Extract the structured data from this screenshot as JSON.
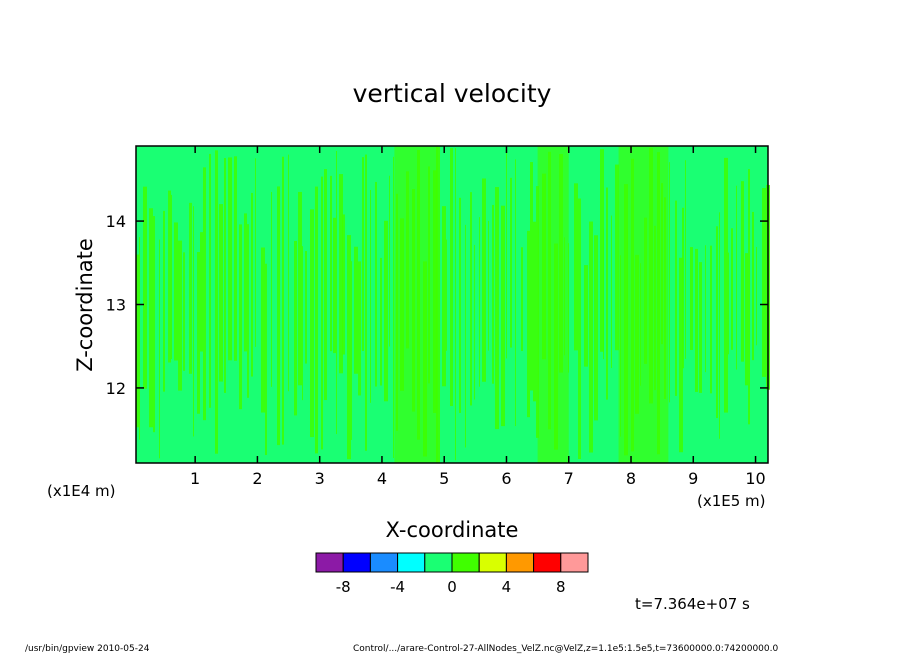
{
  "chart_data": {
    "type": "heatmap",
    "title": "vertical velocity",
    "xlabel": "X-coordinate",
    "ylabel": "Z-coordinate",
    "x_unit_left": "(x1E4 m)",
    "x_unit_right": "(x1E5 m)",
    "xlim": [
      0.05,
      10.2
    ],
    "ylim": [
      11.1,
      14.9
    ],
    "xticks": [
      1,
      2,
      3,
      4,
      5,
      6,
      7,
      8,
      9,
      10
    ],
    "yticks": [
      12,
      13,
      14
    ],
    "colorbar": {
      "levels": [
        -10,
        -8,
        -6,
        -4,
        -2,
        0,
        2,
        4,
        6,
        8,
        10
      ],
      "colors": [
        "#8c1aa6",
        "#0000ff",
        "#1a8cff",
        "#00ffff",
        "#1aff73",
        "#40ff00",
        "#d9ff00",
        "#ff9900",
        "#ff0000",
        "#ff9999"
      ],
      "tick_labels": [
        "-8",
        "-4",
        "0",
        "4",
        "8"
      ],
      "tick_values": [
        -8,
        -4,
        0,
        4,
        8
      ]
    },
    "field_note": "values mostly between -2 and 2",
    "time_label": "t=7.364e+07 s"
  },
  "footer": {
    "left": "/usr/bin/gpview  2010-05-24",
    "right": "Control/.../arare-Control-27-AllNodes_VelZ.nc@VelZ,z=1.1e5:1.5e5,t=73600000.0:74200000.0"
  },
  "colors": {
    "neutral_green": "#1aff73",
    "positive_green": "#40ff00",
    "frame": "#000000"
  }
}
